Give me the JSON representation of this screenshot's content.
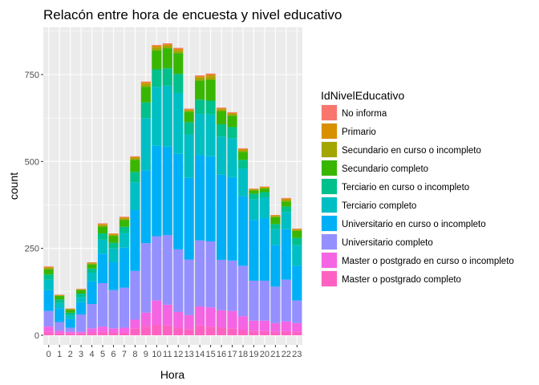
{
  "chart_data": {
    "type": "bar",
    "stacked": true,
    "title": "Relacón entre hora de encuesta y nivel educativo",
    "xlabel": "Hora",
    "ylabel": "count",
    "ylim": [
      0,
      890
    ],
    "yticks": [
      0,
      250,
      500,
      750
    ],
    "grid": true,
    "legend_position": "right",
    "legend_title": "IdNivelEducativo",
    "categories": [
      "0",
      "1",
      "2",
      "3",
      "4",
      "5",
      "6",
      "7",
      "8",
      "9",
      "10",
      "11",
      "12",
      "13",
      "14",
      "15",
      "16",
      "17",
      "18",
      "19",
      "20",
      "21",
      "22",
      "23"
    ],
    "series": [
      {
        "name": "Master o postgrado completo",
        "color": "#FF61C3",
        "values": [
          10,
          5,
          5,
          5,
          8,
          10,
          8,
          8,
          20,
          25,
          30,
          28,
          22,
          18,
          28,
          25,
          22,
          20,
          15,
          12,
          12,
          10,
          12,
          10
        ]
      },
      {
        "name": "Master o postgrado en curso o incompleto",
        "color": "#F564E3",
        "values": [
          15,
          8,
          5,
          5,
          12,
          15,
          12,
          14,
          25,
          40,
          70,
          60,
          45,
          40,
          55,
          55,
          50,
          50,
          40,
          30,
          30,
          25,
          28,
          25
        ]
      },
      {
        "name": "Universitario completo",
        "color": "#9590FF",
        "values": [
          45,
          25,
          12,
          50,
          70,
          125,
          110,
          115,
          140,
          200,
          185,
          200,
          180,
          160,
          190,
          190,
          145,
          145,
          145,
          115,
          115,
          105,
          120,
          65
        ]
      },
      {
        "name": "Universitario en curso o incompleto",
        "color": "#00B0F6",
        "values": [
          60,
          40,
          25,
          35,
          65,
          85,
          80,
          115,
          175,
          210,
          260,
          255,
          275,
          235,
          245,
          245,
          245,
          240,
          200,
          175,
          180,
          120,
          145,
          100
        ]
      },
      {
        "name": "Terciario completo",
        "color": "#00BFC4",
        "values": [
          30,
          15,
          10,
          15,
          25,
          40,
          40,
          42,
          80,
          150,
          170,
          175,
          175,
          125,
          120,
          120,
          110,
          112,
          80,
          60,
          60,
          45,
          50,
          60
        ]
      },
      {
        "name": "Terciario en curso o incompleto",
        "color": "#00C08B",
        "values": [
          15,
          10,
          8,
          10,
          12,
          18,
          16,
          18,
          30,
          45,
          50,
          50,
          55,
          35,
          40,
          40,
          35,
          32,
          25,
          15,
          15,
          15,
          15,
          20
        ]
      },
      {
        "name": "Secundario completo",
        "color": "#39B600",
        "values": [
          15,
          10,
          8,
          10,
          12,
          20,
          20,
          20,
          35,
          45,
          55,
          58,
          60,
          30,
          55,
          60,
          38,
          33,
          23,
          10,
          10,
          20,
          15,
          20
        ]
      },
      {
        "name": "Secundario en curso o incompleto",
        "color": "#A3A500",
        "values": [
          4,
          2,
          2,
          2,
          3,
          4,
          3,
          4,
          5,
          8,
          8,
          7,
          7,
          4,
          8,
          10,
          5,
          5,
          5,
          2,
          3,
          3,
          5,
          4
        ]
      },
      {
        "name": "Primario",
        "color": "#D89000",
        "values": [
          2,
          1,
          1,
          1,
          2,
          3,
          3,
          3,
          3,
          5,
          5,
          4,
          5,
          3,
          4,
          5,
          3,
          3,
          3,
          2,
          2,
          2,
          3,
          2
        ]
      },
      {
        "name": "No informa",
        "color": "#F8766D",
        "values": [
          2,
          1,
          1,
          1,
          1,
          2,
          1,
          2,
          2,
          2,
          2,
          3,
          3,
          2,
          3,
          3,
          2,
          2,
          2,
          1,
          1,
          1,
          2,
          1
        ]
      }
    ]
  }
}
